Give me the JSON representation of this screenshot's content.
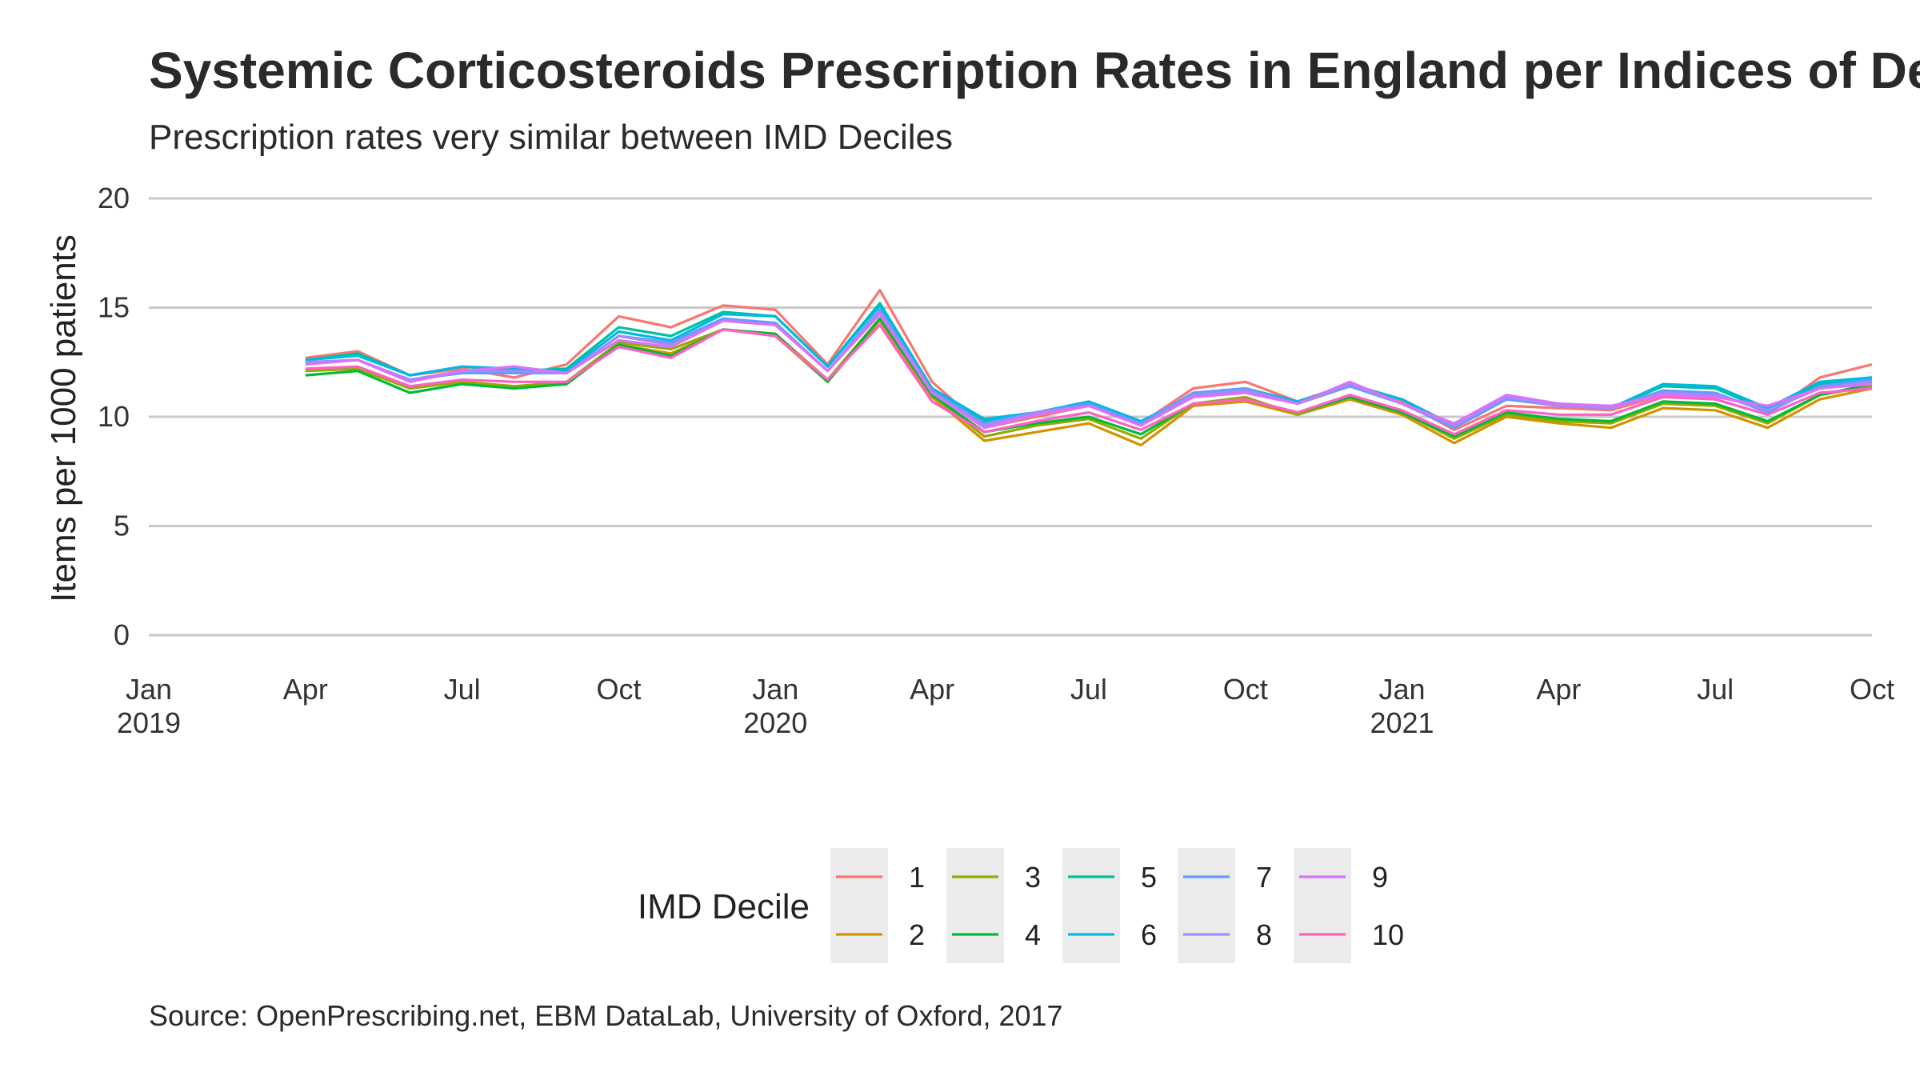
{
  "chart_data": {
    "type": "line",
    "title": "Systemic Corticosteroids Prescription Rates in England per Indices of Deprivation",
    "subtitle": "Prescription rates very similar between IMD Deciles",
    "ylabel": "Items per 1000 patients",
    "caption": "Source: OpenPrescribing.net, EBM DataLab, University of Oxford, 2017",
    "ylim": [
      0,
      20
    ],
    "yticks": [
      0,
      5,
      10,
      15,
      20
    ],
    "xlim": [
      "2019-01",
      "2021-10"
    ],
    "xticks": [
      {
        "date": "2019-01",
        "label": "Jan",
        "year": "2019"
      },
      {
        "date": "2019-04",
        "label": "Apr",
        "year": ""
      },
      {
        "date": "2019-07",
        "label": "Jul",
        "year": ""
      },
      {
        "date": "2019-10",
        "label": "Oct",
        "year": ""
      },
      {
        "date": "2020-01",
        "label": "Jan",
        "year": "2020"
      },
      {
        "date": "2020-04",
        "label": "Apr",
        "year": ""
      },
      {
        "date": "2020-07",
        "label": "Jul",
        "year": ""
      },
      {
        "date": "2020-10",
        "label": "Oct",
        "year": ""
      },
      {
        "date": "2021-01",
        "label": "Jan",
        "year": "2021"
      },
      {
        "date": "2021-04",
        "label": "Apr",
        "year": ""
      },
      {
        "date": "2021-07",
        "label": "Jul",
        "year": ""
      },
      {
        "date": "2021-10",
        "label": "Oct",
        "year": ""
      }
    ],
    "grid": true,
    "legend": {
      "title": "IMD Decile",
      "position": "bottom"
    },
    "x": [
      "2019-04",
      "2019-05",
      "2019-06",
      "2019-07",
      "2019-08",
      "2019-09",
      "2019-10",
      "2019-11",
      "2019-12",
      "2020-01",
      "2020-02",
      "2020-03",
      "2020-04",
      "2020-05",
      "2020-06",
      "2020-07",
      "2020-08",
      "2020-09",
      "2020-10",
      "2020-11",
      "2020-12",
      "2021-01",
      "2021-02",
      "2021-03",
      "2021-04",
      "2021-05",
      "2021-06",
      "2021-07",
      "2021-08",
      "2021-09",
      "2021-10"
    ],
    "series": [
      {
        "name": "1",
        "color": "#F8766D",
        "values": [
          12.7,
          13.0,
          11.9,
          12.2,
          11.8,
          12.4,
          14.6,
          14.1,
          15.1,
          14.9,
          12.4,
          15.8,
          11.6,
          9.5,
          10.0,
          10.5,
          9.7,
          11.3,
          11.6,
          10.7,
          11.5,
          10.7,
          9.4,
          10.5,
          10.4,
          10.3,
          11.0,
          10.8,
          10.1,
          11.8,
          12.4
        ]
      },
      {
        "name": "2",
        "color": "#D39200",
        "values": [
          12.1,
          12.2,
          11.3,
          11.6,
          11.4,
          11.5,
          13.3,
          12.9,
          14.0,
          13.7,
          11.6,
          14.4,
          10.9,
          8.9,
          9.3,
          9.7,
          8.7,
          10.5,
          10.7,
          10.1,
          10.8,
          10.1,
          8.8,
          10.0,
          9.7,
          9.5,
          10.4,
          10.3,
          9.5,
          10.8,
          11.3
        ]
      },
      {
        "name": "3",
        "color": "#93AA00",
        "values": [
          12.1,
          12.2,
          11.3,
          11.6,
          11.4,
          11.6,
          13.4,
          13.1,
          14.0,
          13.8,
          11.7,
          14.5,
          11.0,
          9.1,
          9.6,
          9.9,
          9.0,
          10.6,
          10.9,
          10.1,
          10.9,
          10.2,
          9.0,
          10.1,
          9.8,
          9.7,
          10.6,
          10.5,
          9.7,
          11.0,
          11.4
        ]
      },
      {
        "name": "4",
        "color": "#00BA38",
        "values": [
          11.9,
          12.1,
          11.1,
          11.5,
          11.3,
          11.5,
          13.3,
          12.8,
          14.0,
          13.8,
          11.6,
          14.5,
          11.0,
          9.3,
          9.7,
          10.0,
          9.2,
          10.6,
          10.8,
          10.2,
          10.9,
          10.2,
          9.1,
          10.2,
          9.9,
          9.8,
          10.7,
          10.6,
          9.8,
          11.0,
          11.5
        ]
      },
      {
        "name": "5",
        "color": "#00C19F",
        "values": [
          12.6,
          12.9,
          11.9,
          12.3,
          12.1,
          12.2,
          14.1,
          13.7,
          14.8,
          14.6,
          12.3,
          15.2,
          11.3,
          9.8,
          10.2,
          10.6,
          9.7,
          11.0,
          11.3,
          10.7,
          11.5,
          10.8,
          9.6,
          10.9,
          10.5,
          10.4,
          11.4,
          11.3,
          10.3,
          11.5,
          11.8
        ]
      },
      {
        "name": "6",
        "color": "#00B9E3",
        "values": [
          12.6,
          12.8,
          11.9,
          12.3,
          12.2,
          12.1,
          13.9,
          13.5,
          14.7,
          14.6,
          12.3,
          15.1,
          11.3,
          9.9,
          10.2,
          10.7,
          9.8,
          11.0,
          11.3,
          10.7,
          11.4,
          10.8,
          9.6,
          10.9,
          10.5,
          10.4,
          11.5,
          11.4,
          10.4,
          11.6,
          11.8
        ]
      },
      {
        "name": "7",
        "color": "#619CFF",
        "values": [
          12.5,
          12.6,
          11.7,
          12.0,
          12.0,
          12.0,
          13.7,
          13.4,
          14.5,
          14.3,
          12.1,
          14.9,
          11.2,
          9.7,
          10.2,
          10.6,
          9.7,
          11.1,
          11.3,
          10.6,
          11.4,
          10.6,
          9.5,
          10.8,
          10.5,
          10.4,
          11.2,
          11.1,
          10.2,
          11.4,
          11.7
        ]
      },
      {
        "name": "8",
        "color": "#A58AFF",
        "values": [
          12.5,
          12.6,
          11.7,
          12.1,
          12.1,
          12.0,
          13.7,
          13.3,
          14.4,
          14.2,
          12.1,
          14.8,
          11.1,
          9.6,
          10.2,
          10.5,
          9.6,
          11.0,
          11.2,
          10.6,
          11.5,
          10.6,
          9.6,
          10.9,
          10.5,
          10.4,
          11.1,
          11.0,
          10.3,
          11.3,
          11.6
        ]
      },
      {
        "name": "9",
        "color": "#DB72FB",
        "values": [
          12.4,
          12.6,
          11.6,
          12.1,
          12.3,
          12.0,
          13.5,
          13.2,
          14.4,
          14.2,
          12.1,
          14.7,
          11.1,
          9.5,
          10.1,
          10.5,
          9.6,
          10.9,
          11.1,
          10.6,
          11.6,
          10.6,
          9.7,
          11.0,
          10.6,
          10.5,
          11.0,
          10.9,
          10.5,
          11.3,
          11.5
        ]
      },
      {
        "name": "10",
        "color": "#FF61C3",
        "values": [
          12.2,
          12.3,
          11.4,
          11.7,
          11.6,
          11.6,
          13.2,
          12.7,
          14.0,
          13.7,
          11.7,
          14.2,
          10.7,
          9.3,
          9.8,
          10.2,
          9.4,
          10.6,
          10.8,
          10.2,
          11.0,
          10.3,
          9.2,
          10.3,
          10.1,
          10.1,
          10.9,
          10.8,
          10.1,
          11.1,
          11.3
        ]
      }
    ]
  }
}
